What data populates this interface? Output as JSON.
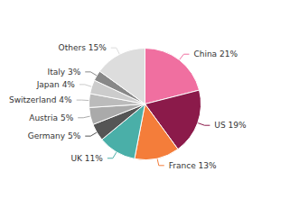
{
  "chart_data": {
    "type": "pie",
    "categories": [
      "China",
      "US",
      "France",
      "UK",
      "Germany",
      "Austria",
      "Switzerland",
      "Japan",
      "Italy",
      "Others"
    ],
    "values": [
      21,
      19,
      13,
      11,
      5,
      5,
      4,
      4,
      3,
      15
    ],
    "value_labels": [
      "China 21%",
      "US 19%",
      "France 13%",
      "UK 11%",
      "Germany 5%",
      "Austria 5%",
      "Switzerland 4%",
      "Japan 4%",
      "Italy 3%",
      "Others 15%"
    ],
    "colors": [
      "#f06fa0",
      "#8b1a4a",
      "#f47d3a",
      "#4aafa8",
      "#555555",
      "#aaaaaa",
      "#bbbbbb",
      "#cccccc",
      "#888888",
      "#dddddd"
    ],
    "data_labels": true,
    "legend": false
  }
}
